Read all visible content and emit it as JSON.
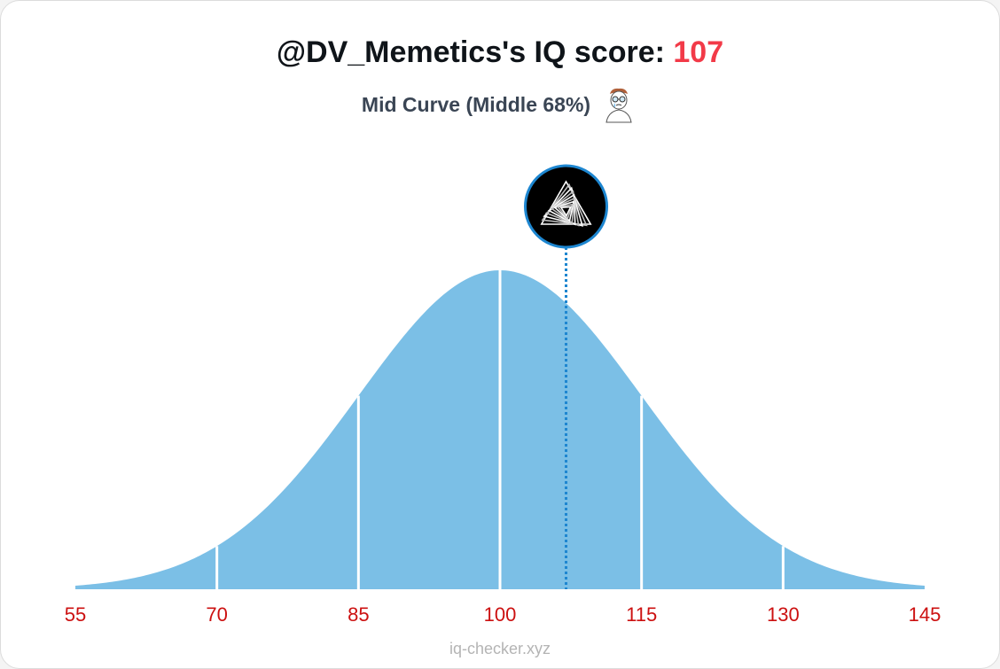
{
  "header": {
    "title_prefix": "@DV_Memetics's IQ score: ",
    "score": "107",
    "subtitle": "Mid Curve (Middle 68%)",
    "subtitle_icon": "midwit-face-icon"
  },
  "chart_data": {
    "type": "area",
    "distribution": "normal",
    "mean": 100,
    "sd": 15,
    "xlim": [
      55,
      145
    ],
    "ticks": [
      55,
      70,
      85,
      100,
      115,
      130,
      145
    ],
    "section_dividers": [
      70,
      85,
      100,
      115,
      130
    ],
    "marker": {
      "value": 107,
      "avatar_icon": "triangle-avatar-icon"
    },
    "fill_color": "#7bbfe6",
    "marker_line_color": "#1d86d0",
    "tick_label_color": "#cc1010"
  },
  "footer": {
    "text": "iq-checker.xyz"
  }
}
